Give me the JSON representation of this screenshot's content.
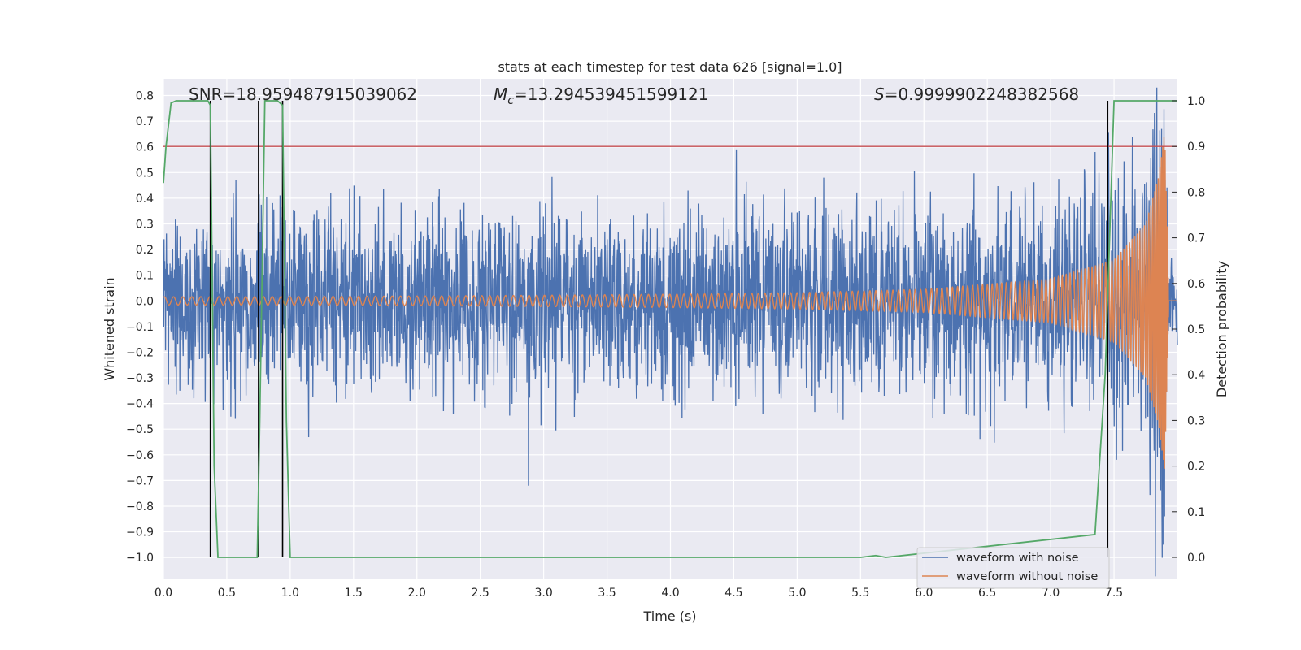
{
  "chart_data": {
    "type": "line",
    "title": "stats at each timestep for test data 626 [signal=1.0]",
    "xlabel": "Time (s)",
    "ylabel_left": "Whitened strain",
    "ylabel_right": "Detection probability",
    "xlim": [
      0.0,
      8.0
    ],
    "ylim_left": [
      -1.085,
      0.865
    ],
    "ylim_right": [
      -0.048,
      1.048
    ],
    "x_ticks": [
      "0.0",
      "0.5",
      "1.0",
      "1.5",
      "2.0",
      "2.5",
      "3.0",
      "3.5",
      "4.0",
      "4.5",
      "5.0",
      "5.5",
      "6.0",
      "6.5",
      "7.0",
      "7.5"
    ],
    "y_ticks_left": [
      "0.8",
      "0.7",
      "0.6",
      "0.5",
      "0.4",
      "0.3",
      "0.2",
      "0.1",
      "0.0",
      "−0.1",
      "−0.2",
      "−0.3",
      "−0.4",
      "−0.5",
      "−0.6",
      "−0.7",
      "−0.8",
      "−0.9",
      "−1.0"
    ],
    "y_ticks_right": [
      "1.0",
      "0.9",
      "0.8",
      "0.7",
      "0.6",
      "0.5",
      "0.4",
      "0.3",
      "0.2",
      "0.1",
      "0.0"
    ],
    "grid": true,
    "legend_position": "lower-right",
    "annotations": {
      "snr": "SNR=18.959487915039062",
      "mc_symbol": "M",
      "mc_subscript": "c",
      "mc_value": "=13.294539451599121",
      "s_symbol": "S",
      "s_value": "=0.9999902248382568"
    },
    "colors": {
      "noise": "#4c72b0",
      "clean": "#dd8452",
      "probability": "#55a868",
      "threshold": "#c44e52",
      "marker": "#000000",
      "background": "#eaeaf2",
      "grid": "#ffffff"
    },
    "threshold": {
      "axis": "right",
      "value": 0.9
    },
    "detection_markers_x": [
      0.37,
      0.75,
      0.94,
      7.45
    ],
    "series": [
      {
        "name": "waveform with noise",
        "axis": "left",
        "envelope_x": [
          0.0,
          1.0,
          2.0,
          3.0,
          4.0,
          5.0,
          6.0,
          6.5,
          7.0,
          7.4,
          7.7,
          7.85,
          7.9,
          7.93,
          8.0
        ],
        "envelope_y": [
          0.21,
          0.21,
          0.21,
          0.21,
          0.21,
          0.21,
          0.21,
          0.22,
          0.23,
          0.25,
          0.3,
          0.34,
          0.36,
          0.05,
          0.18
        ],
        "notable_peaks": [
          {
            "x": 4.52,
            "y": 0.59
          },
          {
            "x": 7.82,
            "y": 0.73
          },
          {
            "x": 2.88,
            "y": -0.72
          },
          {
            "x": 7.89,
            "y": -0.95
          }
        ]
      },
      {
        "name": "waveform without noise",
        "axis": "left",
        "amplitude_x": [
          0.0,
          1.0,
          2.0,
          3.0,
          4.0,
          5.0,
          6.0,
          7.0,
          7.5,
          7.75,
          7.85,
          7.9,
          7.93
        ],
        "amplitude_y": [
          0.016,
          0.017,
          0.019,
          0.022,
          0.026,
          0.032,
          0.045,
          0.085,
          0.16,
          0.3,
          0.48,
          0.66,
          0.05
        ],
        "merger_time": 7.93
      },
      {
        "axis": "right",
        "x": [
          0.0,
          0.02,
          0.06,
          0.1,
          0.2,
          0.3,
          0.35,
          0.37,
          0.4,
          0.43,
          0.6,
          0.74,
          0.76,
          0.8,
          0.9,
          0.94,
          0.97,
          1.0,
          5.5,
          5.62,
          5.7,
          7.35,
          7.43,
          7.5,
          8.0
        ],
        "y": [
          0.82,
          0.9,
          0.995,
          1.0,
          1.0,
          1.0,
          1.0,
          0.99,
          0.2,
          0.0,
          0.0,
          0.0,
          0.3,
          1.0,
          1.0,
          0.99,
          0.3,
          0.0,
          0.0,
          0.004,
          0.0,
          0.05,
          0.4,
          1.0,
          1.0
        ]
      }
    ]
  }
}
